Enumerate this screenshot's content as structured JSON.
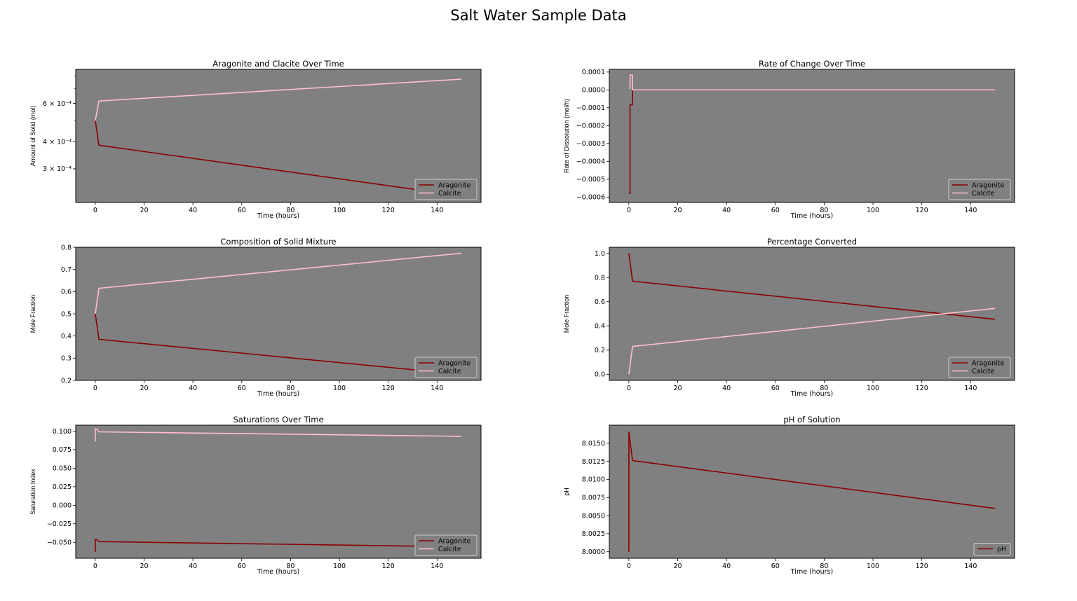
{
  "figure": {
    "suptitle": "Salt Water Sample Data"
  },
  "colors": {
    "aragonite": "#8b0000",
    "calcite": "#ffc0cb",
    "ph": "#8b0000",
    "axes_bg": "#808080"
  },
  "chart_data": [
    {
      "type": "line",
      "title": "Aragonite and Clacite Over Time",
      "xlabel": "Time (hours)",
      "ylabel": "Amount of Solid (mol)",
      "yscale": "log",
      "xlim": [
        -8,
        158
      ],
      "ylim": [
        0.00021,
        0.00086
      ],
      "xticks": [
        0,
        20,
        40,
        60,
        80,
        100,
        120,
        140
      ],
      "yticks": [
        {
          "value": 0.0006,
          "label": "6 × 10⁻⁴"
        },
        {
          "value": 0.0004,
          "label": "4 × 10⁻⁴"
        },
        {
          "value": 0.0003,
          "label": "3 × 10⁻⁴"
        }
      ],
      "legend": "lower right",
      "series": [
        {
          "name": "Aragonite",
          "color": "#8b0000",
          "x": [
            0,
            1.5,
            150
          ],
          "y": [
            0.0005,
            0.000385,
            0.000225
          ]
        },
        {
          "name": "Calcite",
          "color": "#ffc0cb",
          "x": [
            0,
            1.5,
            150
          ],
          "y": [
            0.0005,
            0.000615,
            0.000775
          ]
        }
      ]
    },
    {
      "type": "line",
      "title": "Rate of Change Over Time",
      "xlabel": "Time (hours)",
      "ylabel": "Rate of Dissolution (mol/h)",
      "xlim": [
        -8,
        158
      ],
      "ylim": [
        -0.00063,
        0.000115
      ],
      "xticks": [
        0,
        20,
        40,
        60,
        80,
        100,
        120,
        140
      ],
      "yticks": [
        {
          "value": 0.0001,
          "label": "0.0001"
        },
        {
          "value": 0,
          "label": "0.0000"
        },
        {
          "value": -0.0001,
          "label": "−0.0001"
        },
        {
          "value": -0.0002,
          "label": "−0.0002"
        },
        {
          "value": -0.0003,
          "label": "−0.0003"
        },
        {
          "value": -0.0004,
          "label": "−0.0004"
        },
        {
          "value": -0.0005,
          "label": "−0.0005"
        },
        {
          "value": -0.0006,
          "label": "−0.0006"
        }
      ],
      "legend": "lower right",
      "series": [
        {
          "name": "Aragonite",
          "color": "#8b0000",
          "x": [
            0,
            0.5,
            0.5,
            1.5,
            1.5,
            150
          ],
          "y": [
            -0.00058,
            -0.00058,
            -8.3e-05,
            -8.3e-05,
            0,
            0
          ]
        },
        {
          "name": "Calcite",
          "color": "#ffc0cb",
          "x": [
            0,
            0.5,
            0.5,
            1.5,
            1.5,
            150
          ],
          "y": [
            1e-05,
            1e-05,
            8.3e-05,
            8.3e-05,
            0,
            0
          ]
        }
      ]
    },
    {
      "type": "line",
      "title": "Composition of Solid Mixture",
      "xlabel": "Time (hours)",
      "ylabel": "Mole Fraction",
      "xlim": [
        -8,
        158
      ],
      "ylim": [
        0.2,
        0.8
      ],
      "xticks": [
        0,
        20,
        40,
        60,
        80,
        100,
        120,
        140
      ],
      "yticks": [
        {
          "value": 0.8,
          "label": "0.8"
        },
        {
          "value": 0.7,
          "label": "0.7"
        },
        {
          "value": 0.6,
          "label": "0.6"
        },
        {
          "value": 0.5,
          "label": "0.5"
        },
        {
          "value": 0.4,
          "label": "0.4"
        },
        {
          "value": 0.3,
          "label": "0.3"
        },
        {
          "value": 0.2,
          "label": "0.2"
        }
      ],
      "legend": "lower right",
      "series": [
        {
          "name": "Aragonite",
          "color": "#8b0000",
          "x": [
            0,
            1.5,
            150
          ],
          "y": [
            0.5,
            0.385,
            0.227
          ]
        },
        {
          "name": "Calcite",
          "color": "#ffc0cb",
          "x": [
            0,
            1.5,
            150
          ],
          "y": [
            0.5,
            0.615,
            0.773
          ]
        }
      ]
    },
    {
      "type": "line",
      "title": "Percentage Converted",
      "xlabel": "Time (hours)",
      "ylabel": "Mole Fraction",
      "xlim": [
        -8,
        158
      ],
      "ylim": [
        -0.05,
        1.05
      ],
      "xticks": [
        0,
        20,
        40,
        60,
        80,
        100,
        120,
        140
      ],
      "yticks": [
        {
          "value": 1.0,
          "label": "1.0"
        },
        {
          "value": 0.8,
          "label": "0.8"
        },
        {
          "value": 0.6,
          "label": "0.6"
        },
        {
          "value": 0.4,
          "label": "0.4"
        },
        {
          "value": 0.2,
          "label": "0.2"
        },
        {
          "value": 0.0,
          "label": "0.0"
        }
      ],
      "legend": "lower right",
      "series": [
        {
          "name": "Aragonite",
          "color": "#8b0000",
          "x": [
            0,
            1.5,
            150
          ],
          "y": [
            1.0,
            0.77,
            0.455
          ]
        },
        {
          "name": "Calcite",
          "color": "#ffc0cb",
          "x": [
            0,
            1.5,
            150
          ],
          "y": [
            0.0,
            0.23,
            0.545
          ]
        }
      ]
    },
    {
      "type": "line",
      "title": "Saturations Over Time",
      "xlabel": "Time (hours)",
      "ylabel": "Saturation Index",
      "xlim": [
        -8,
        158
      ],
      "ylim": [
        -0.0715,
        0.108
      ],
      "xticks": [
        0,
        20,
        40,
        60,
        80,
        100,
        120,
        140
      ],
      "yticks": [
        {
          "value": 0.1,
          "label": "0.100"
        },
        {
          "value": 0.075,
          "label": "0.075"
        },
        {
          "value": 0.05,
          "label": "0.050"
        },
        {
          "value": 0.025,
          "label": "0.025"
        },
        {
          "value": 0.0,
          "label": "0.000"
        },
        {
          "value": -0.025,
          "label": "−0.025"
        },
        {
          "value": -0.05,
          "label": "−0.050"
        }
      ],
      "legend": "lower right",
      "series": [
        {
          "name": "Aragonite",
          "color": "#8b0000",
          "x": [
            0,
            0,
            0.5,
            1.5,
            150
          ],
          "y": [
            -0.063,
            -0.046,
            -0.046,
            -0.049,
            -0.056
          ]
        },
        {
          "name": "Calcite",
          "color": "#ffc0cb",
          "x": [
            0,
            0,
            0.5,
            1.5,
            150
          ],
          "y": [
            0.086,
            0.103,
            0.103,
            0.099,
            0.093
          ]
        }
      ]
    },
    {
      "type": "line",
      "title": "pH of Solution",
      "xlabel": "Time (hours)",
      "ylabel": "pH",
      "xlim": [
        -8,
        158
      ],
      "ylim": [
        7.9991,
        8.0175
      ],
      "xticks": [
        0,
        20,
        40,
        60,
        80,
        100,
        120,
        140
      ],
      "yticks": [
        {
          "value": 8.015,
          "label": "8.0150"
        },
        {
          "value": 8.0125,
          "label": "8.0125"
        },
        {
          "value": 8.01,
          "label": "8.0100"
        },
        {
          "value": 8.0075,
          "label": "8.0075"
        },
        {
          "value": 8.005,
          "label": "8.0050"
        },
        {
          "value": 8.0025,
          "label": "8.0025"
        },
        {
          "value": 8.0,
          "label": "8.0000"
        }
      ],
      "legend": "lower right",
      "series": [
        {
          "name": "pH",
          "color": "#8b0000",
          "x": [
            0,
            0,
            1.5,
            150
          ],
          "y": [
            8.0,
            8.0166,
            8.0126,
            8.006
          ]
        }
      ]
    }
  ]
}
